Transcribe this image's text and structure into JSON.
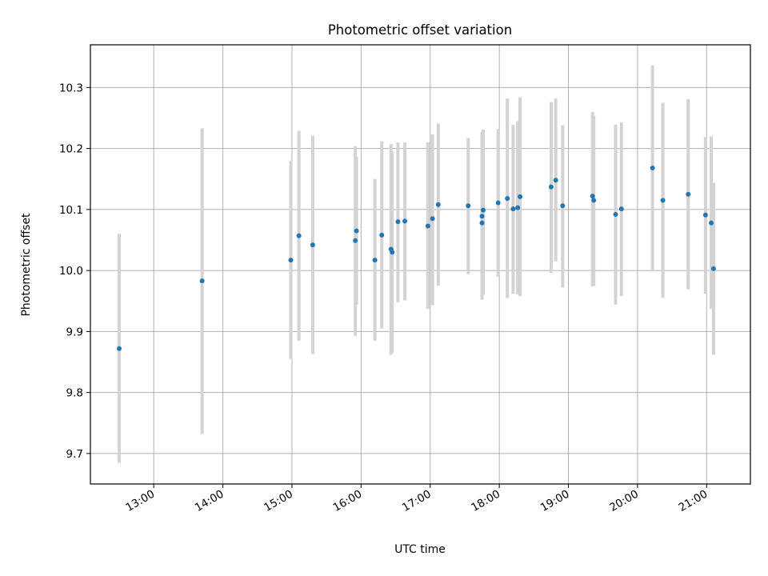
{
  "chart_data": {
    "type": "scatter",
    "title": "Photometric offset variation",
    "xlabel": "UTC time",
    "ylabel": "Photometric offset",
    "grid": true,
    "xlim": [
      "12:05",
      "21:38"
    ],
    "ylim": [
      9.65,
      10.37
    ],
    "x_ticks": [
      "13:00",
      "14:00",
      "15:00",
      "16:00",
      "17:00",
      "18:00",
      "19:00",
      "20:00",
      "21:00"
    ],
    "y_ticks": [
      9.7,
      9.8,
      9.9,
      10.0,
      10.1,
      10.2,
      10.3
    ],
    "y_tick_labels": [
      "9.7",
      "9.8",
      "9.9",
      "10.0",
      "10.1",
      "10.2",
      "10.3"
    ],
    "colors": {
      "points": "#1f77b4",
      "error_bars": "#d3d3d3",
      "grid": "#b0b0b0"
    },
    "points": [
      {
        "x": "12:30",
        "y": 9.872,
        "ylow": 9.685,
        "yhigh": 10.06
      },
      {
        "x": "13:42",
        "y": 9.983,
        "ylow": 9.732,
        "yhigh": 10.233
      },
      {
        "x": "14:59",
        "y": 10.017,
        "ylow": 9.855,
        "yhigh": 10.18
      },
      {
        "x": "15:06",
        "y": 10.057,
        "ylow": 9.885,
        "yhigh": 10.229
      },
      {
        "x": "15:18",
        "y": 10.042,
        "ylow": 9.863,
        "yhigh": 10.221
      },
      {
        "x": "15:55",
        "y": 10.049,
        "ylow": 9.893,
        "yhigh": 10.204
      },
      {
        "x": "15:56",
        "y": 10.065,
        "ylow": 9.944,
        "yhigh": 10.186
      },
      {
        "x": "16:12",
        "y": 10.017,
        "ylow": 9.885,
        "yhigh": 10.15
      },
      {
        "x": "16:18",
        "y": 10.058,
        "ylow": 9.905,
        "yhigh": 10.212
      },
      {
        "x": "16:26",
        "y": 10.035,
        "ylow": 9.862,
        "yhigh": 10.207
      },
      {
        "x": "16:27",
        "y": 10.03,
        "ylow": 9.865,
        "yhigh": 10.195
      },
      {
        "x": "16:32",
        "y": 10.08,
        "ylow": 9.948,
        "yhigh": 10.21
      },
      {
        "x": "16:38",
        "y": 10.081,
        "ylow": 9.951,
        "yhigh": 10.21
      },
      {
        "x": "16:58",
        "y": 10.073,
        "ylow": 9.937,
        "yhigh": 10.21
      },
      {
        "x": "17:02",
        "y": 10.085,
        "ylow": 9.943,
        "yhigh": 10.223
      },
      {
        "x": "17:07",
        "y": 10.108,
        "ylow": 9.975,
        "yhigh": 10.241
      },
      {
        "x": "17:33",
        "y": 10.106,
        "ylow": 9.994,
        "yhigh": 10.217
      },
      {
        "x": "17:45",
        "y": 10.089,
        "ylow": 9.952,
        "yhigh": 10.227
      },
      {
        "x": "17:45",
        "y": 10.078,
        "ylow": 9.955,
        "yhigh": 10.199
      },
      {
        "x": "17:46",
        "y": 10.099,
        "ylow": 9.96,
        "yhigh": 10.231
      },
      {
        "x": "17:59",
        "y": 10.111,
        "ylow": 9.99,
        "yhigh": 10.232
      },
      {
        "x": "18:07",
        "y": 10.118,
        "ylow": 9.955,
        "yhigh": 10.282
      },
      {
        "x": "18:12",
        "y": 10.101,
        "ylow": 9.962,
        "yhigh": 10.239
      },
      {
        "x": "18:16",
        "y": 10.103,
        "ylow": 9.961,
        "yhigh": 10.245
      },
      {
        "x": "18:18",
        "y": 10.121,
        "ylow": 9.958,
        "yhigh": 10.284
      },
      {
        "x": "18:45",
        "y": 10.137,
        "ylow": 9.996,
        "yhigh": 10.276
      },
      {
        "x": "18:49",
        "y": 10.148,
        "ylow": 10.015,
        "yhigh": 10.282
      },
      {
        "x": "18:55",
        "y": 10.106,
        "ylow": 9.972,
        "yhigh": 10.238
      },
      {
        "x": "19:21",
        "y": 10.122,
        "ylow": 9.974,
        "yhigh": 10.26
      },
      {
        "x": "19:22",
        "y": 10.115,
        "ylow": 9.975,
        "yhigh": 10.254
      },
      {
        "x": "19:41",
        "y": 10.092,
        "ylow": 9.944,
        "yhigh": 10.239
      },
      {
        "x": "19:46",
        "y": 10.101,
        "ylow": 9.958,
        "yhigh": 10.243
      },
      {
        "x": "20:13",
        "y": 10.168,
        "ylow": 10.0,
        "yhigh": 10.336
      },
      {
        "x": "20:22",
        "y": 10.115,
        "ylow": 9.955,
        "yhigh": 10.275
      },
      {
        "x": "20:44",
        "y": 10.125,
        "ylow": 9.969,
        "yhigh": 10.281
      },
      {
        "x": "20:59",
        "y": 10.091,
        "ylow": 9.962,
        "yhigh": 10.219
      },
      {
        "x": "21:04",
        "y": 10.078,
        "ylow": 9.937,
        "yhigh": 10.22
      },
      {
        "x": "21:06",
        "y": 10.003,
        "ylow": 9.862,
        "yhigh": 10.144
      }
    ]
  }
}
